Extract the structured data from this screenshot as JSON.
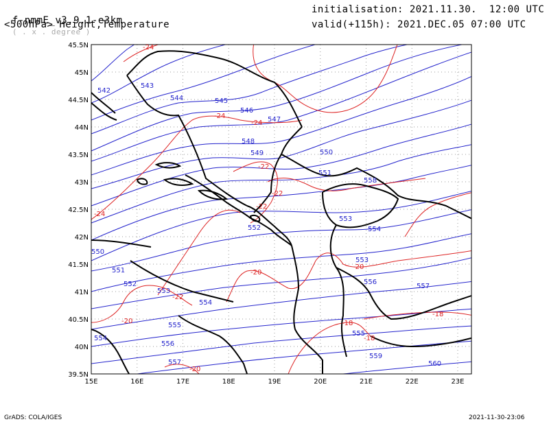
{
  "header": {
    "model": "f-nmmE_v3.9.1-e3km",
    "projection": "( . x . degree )",
    "field": "<500hPa> Height,Temperature",
    "initialisation": "initialisation: 2021.11.30.  12:00 UTC",
    "valid": "valid(+115h): 2021.DEC.05 07:00 UTC"
  },
  "footer": {
    "credit": "GrADS: COLA/IGES",
    "timestamp": "2021-11-30-23:06"
  },
  "map": {
    "lon_range": [
      15,
      23.3
    ],
    "lat_range": [
      39.5,
      45.5
    ],
    "lon_ticks": [
      "15E",
      "16E",
      "17E",
      "18E",
      "19E",
      "20E",
      "21E",
      "22E",
      "23E"
    ],
    "lat_ticks": [
      "39.5N",
      "40N",
      "40.5N",
      "41N",
      "41.5N",
      "42N",
      "42.5N",
      "43N",
      "43.5N",
      "44N",
      "44.5N",
      "45N",
      "45.5N"
    ],
    "grid": "dotted",
    "colors": {
      "height": "#2222cc",
      "temperature": "#dd2222",
      "border": "#000000"
    },
    "height_labels": [
      "542",
      "543",
      "544",
      "545",
      "546",
      "547",
      "548",
      "549",
      "550",
      "551",
      "552",
      "553",
      "554",
      "550",
      "551",
      "552",
      "553",
      "554",
      "555",
      "556",
      "557",
      "558",
      "559",
      "560",
      "553",
      "554",
      "555",
      "556",
      "557"
    ],
    "temperature_labels": [
      "-24",
      "-24",
      "-24",
      "-22",
      "-22",
      "-22",
      "-24",
      "-20",
      "-20",
      "-22",
      "-20",
      "-18",
      "-18",
      "-18",
      "-20"
    ]
  }
}
